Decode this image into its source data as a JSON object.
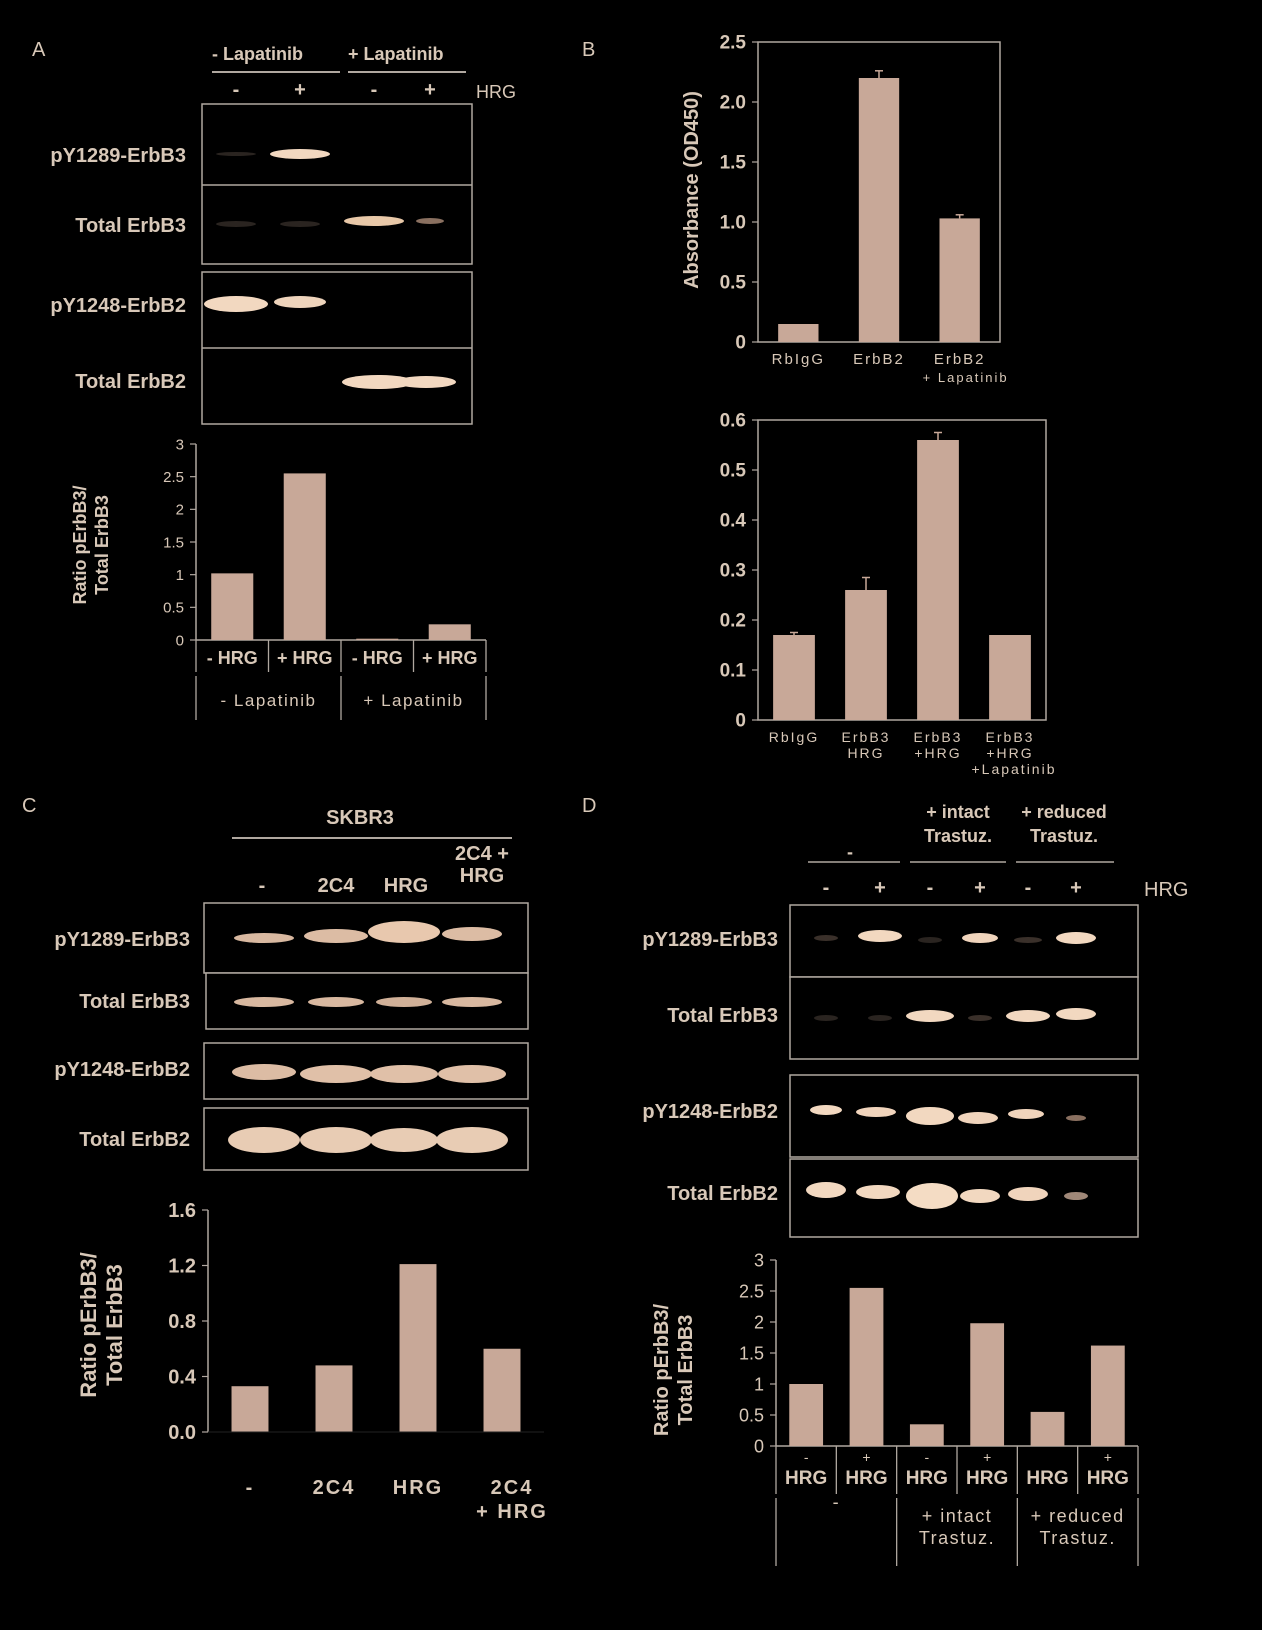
{
  "panels": {
    "a": "A",
    "b": "B",
    "c": "C",
    "d": "D"
  },
  "colors": {
    "bar": "#c8a898",
    "text": "#d8c8b8",
    "frame": "#b0a8a0",
    "band": "#f0d8c0"
  },
  "panelA": {
    "headers": [
      "- Lapatinib",
      "+ Lapatinib"
    ],
    "lanes": [
      "-",
      "+",
      "-",
      "+"
    ],
    "hrg": "HRG",
    "rows": [
      "pY1289-ErbB3",
      "Total ErbB3",
      "pY1248-ErbB2",
      "Total ErbB2"
    ],
    "ylabel1": "Ratio pErbB3/",
    "ylabel2": "Total ErbB3",
    "xcats": [
      "- HRG",
      "+ HRG",
      "- HRG",
      "+ HRG"
    ],
    "groups": [
      "- Lapatinib",
      "+ Lapatinib"
    ]
  },
  "panelB": {
    "ylabel": "Absorbance (OD450)",
    "top_cats": [
      [
        "RbIgG"
      ],
      [
        "ErbB2"
      ],
      [
        "ErbB2",
        "+ Lapatinib"
      ]
    ],
    "bottom_cats": [
      [
        "RbIgG"
      ],
      [
        "ErbB3",
        "HRG"
      ],
      [
        "ErbB3",
        "+HRG"
      ],
      [
        "ErbB3",
        "+HRG",
        "+Lapatinib"
      ]
    ]
  },
  "panelC": {
    "cell": "SKBR3",
    "lanes": [
      [
        "-"
      ],
      [
        "2C4"
      ],
      [
        "HRG"
      ],
      [
        "2C4 +",
        "HRG"
      ]
    ],
    "rows": [
      "pY1289-ErbB3",
      "Total ErbB3",
      "pY1248-ErbB2",
      "Total ErbB2"
    ],
    "ylabel1": "Ratio pErbB3/",
    "ylabel2": "Total ErbB3",
    "xcats": [
      [
        "-"
      ],
      [
        "2C4"
      ],
      [
        "HRG"
      ],
      [
        "2C4",
        "+ HRG"
      ]
    ]
  },
  "panelD": {
    "headers": [
      [
        "-"
      ],
      [
        "+ intact",
        "Trastuz."
      ],
      [
        "+ reduced",
        "Trastuz."
      ]
    ],
    "lanes": [
      "-",
      "+",
      "-",
      "+",
      "-",
      "+"
    ],
    "hrg": "HRG",
    "rows": [
      "pY1289-ErbB3",
      "Total ErbB3",
      "pY1248-ErbB2",
      "Total ErbB2"
    ],
    "ylabel1": "Ratio pErbB3/",
    "ylabel2": "Total ErbB3",
    "xcats": [
      [
        "-",
        "HRG"
      ],
      [
        "+",
        "HRG"
      ],
      [
        "-",
        "HRG"
      ],
      [
        "+",
        "HRG"
      ],
      [
        "",
        "HRG"
      ],
      [
        "+",
        "HRG"
      ]
    ],
    "groups": [
      [
        "-"
      ],
      [
        "+ intact",
        "Trastuz."
      ],
      [
        "+ reduced",
        "Trastuz."
      ]
    ]
  },
  "chart_data": [
    {
      "id": "A",
      "type": "bar",
      "values": [
        1.02,
        2.55,
        0.02,
        0.24
      ],
      "ylim": [
        0,
        3
      ],
      "yticks": [
        "0",
        "0.5",
        "1",
        "1.5",
        "2",
        "2.5",
        "3"
      ],
      "ytickvals": [
        0,
        0.5,
        1,
        1.5,
        2,
        2.5,
        3
      ]
    },
    {
      "id": "B-top",
      "type": "bar",
      "values": [
        0.15,
        2.2,
        1.03
      ],
      "errors": [
        0,
        0.06,
        0.03
      ],
      "ylim": [
        0,
        2.5
      ],
      "yticks": [
        "0",
        "0.5",
        "1.0",
        "1.5",
        "2.0",
        "2.5"
      ],
      "ytickvals": [
        0,
        0.5,
        1,
        1.5,
        2,
        2.5
      ]
    },
    {
      "id": "B-bottom",
      "type": "bar",
      "values": [
        0.17,
        0.26,
        0.56,
        0.17
      ],
      "errors": [
        0.005,
        0.025,
        0.015,
        0
      ],
      "ylim": [
        0,
        0.6
      ],
      "yticks": [
        "0",
        "0.1",
        "0.2",
        "0.3",
        "0.4",
        "0.5",
        "0.6"
      ],
      "ytickvals": [
        0,
        0.1,
        0.2,
        0.3,
        0.4,
        0.5,
        0.6
      ]
    },
    {
      "id": "C",
      "type": "bar",
      "values": [
        0.33,
        0.48,
        1.21,
        0.6
      ],
      "ylim": [
        0,
        1.6
      ],
      "yticks": [
        "0.0",
        "0.4",
        "0.8",
        "1.2",
        "1.6"
      ],
      "ytickvals": [
        0,
        0.4,
        0.8,
        1.2,
        1.6
      ]
    },
    {
      "id": "D",
      "type": "bar",
      "values": [
        1.0,
        2.55,
        0.35,
        1.98,
        0.55,
        1.62
      ],
      "ylim": [
        0,
        3
      ],
      "yticks": [
        "0",
        "0.5",
        "1",
        "1.5",
        "2",
        "2.5",
        "3"
      ],
      "ytickvals": [
        0,
        0.5,
        1,
        1.5,
        2,
        2.5,
        3
      ]
    }
  ]
}
